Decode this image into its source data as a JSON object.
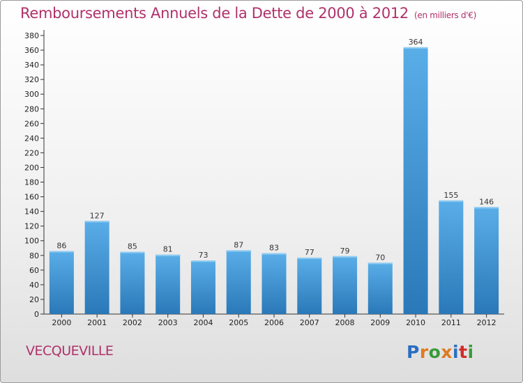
{
  "title": "Remboursements Annuels de la Dette de 2000 à 2012",
  "subtitle": "(en milliers d'€)",
  "town": "VECQUEVILLE",
  "logo": {
    "text": "Proxiti",
    "colors": [
      "#2a6fc0",
      "#e07a1f",
      "#3a9a3a",
      "#e07a1f",
      "#2a6fc0",
      "#d42a2a",
      "#3a9a3a"
    ]
  },
  "colors": {
    "bar_top": "#5aaee8",
    "bar_bottom": "#2a78b8",
    "title": "#b0306a"
  },
  "chart_data": {
    "type": "bar",
    "title": "Remboursements Annuels de la Dette de 2000 à 2012",
    "categories": [
      "2000",
      "2001",
      "2002",
      "2003",
      "2004",
      "2005",
      "2006",
      "2007",
      "2008",
      "2009",
      "2010",
      "2011",
      "2012"
    ],
    "values": [
      86,
      127,
      85,
      81,
      73,
      87,
      83,
      77,
      79,
      70,
      364,
      155,
      146
    ],
    "ylim": [
      0,
      380
    ],
    "ytick_step": 20,
    "grid": false,
    "legend": "none"
  }
}
